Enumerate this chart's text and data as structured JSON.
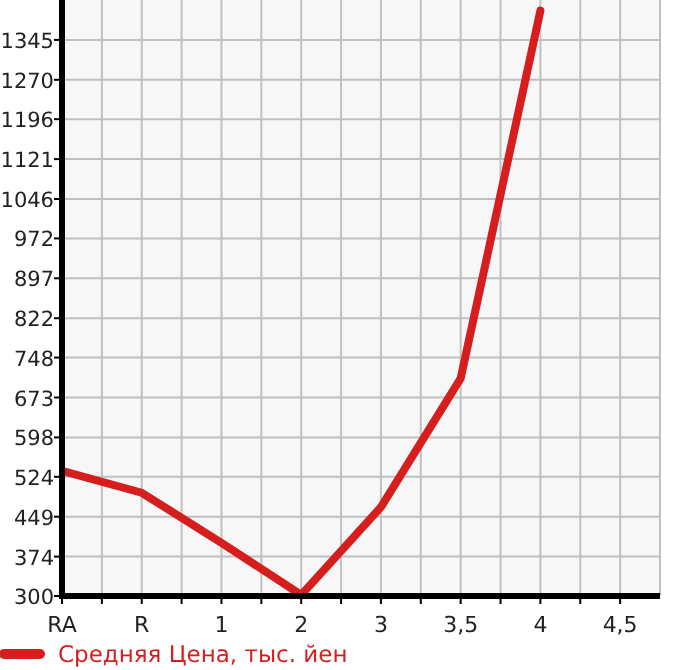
{
  "chart_data": {
    "type": "line",
    "categories": [
      "RA",
      "R",
      "1",
      "2",
      "3",
      "3,5",
      "4",
      "4,5"
    ],
    "series": [
      {
        "name": "Средняя Цена, тыс. йен",
        "color": "#d61e1e",
        "values": [
          535,
          494,
          400,
          302,
          467,
          709,
          1400,
          null
        ]
      }
    ],
    "ylim": [
      300,
      1420
    ],
    "yticks": [
      300,
      374,
      449,
      524,
      598,
      673,
      748,
      822,
      897,
      972,
      1046,
      1121,
      1196,
      1270,
      1345
    ],
    "grid": true,
    "legend": "bottom left",
    "marker": "none",
    "line_style": "solid"
  }
}
